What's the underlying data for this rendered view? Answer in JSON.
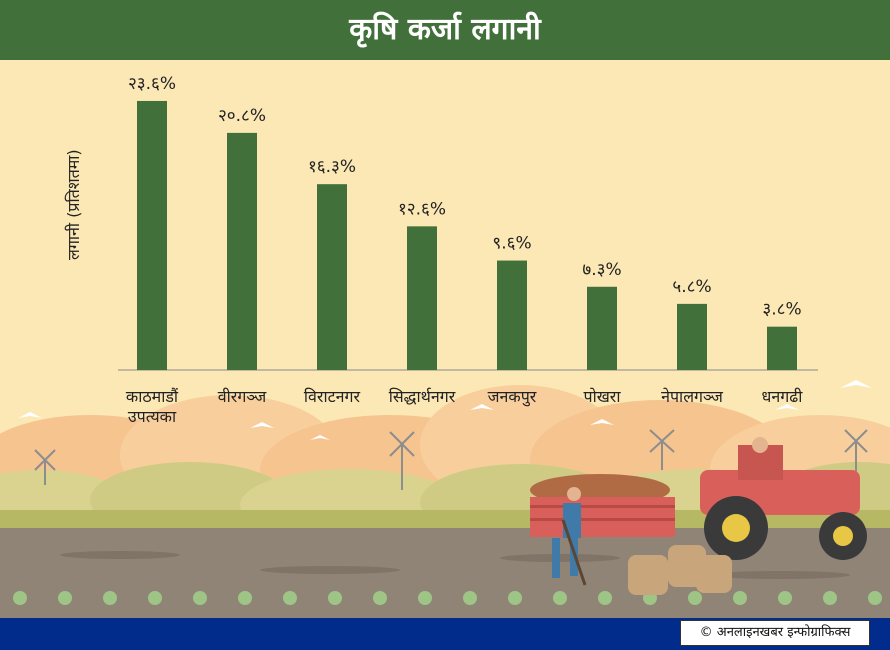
{
  "colors": {
    "header_bg": "#41703b",
    "bar": "#41703b",
    "background": "#fbe8b5",
    "footer_bg": "#012c8c"
  },
  "header": {
    "title": "कृषि कर्जा लगानी"
  },
  "credit": {
    "text": "© अनलाइनखबर इन्फोग्राफिक्स"
  },
  "chart_data": {
    "type": "bar",
    "title": "कृषि कर्जा लगानी",
    "ylabel": "लगानी (प्रतिशतमा)",
    "xlabel": "",
    "categories": [
      "काठमाडौं उपत्यका",
      "वीरगञ्ज",
      "विराटनगर",
      "सिद्धार्थनगर",
      "जनकपुर",
      "पोखरा",
      "नेपालगञ्ज",
      "धनगढी"
    ],
    "values": [
      23.6,
      20.8,
      16.3,
      12.6,
      9.6,
      7.3,
      5.8,
      3.8
    ],
    "value_labels": [
      "२३.६%",
      "२०.८%",
      "१६.३%",
      "१२.६%",
      "९.६%",
      "७.३%",
      "५.८%",
      "३.८%"
    ],
    "ylim": [
      0,
      25
    ],
    "grid": false,
    "legend": "none"
  }
}
